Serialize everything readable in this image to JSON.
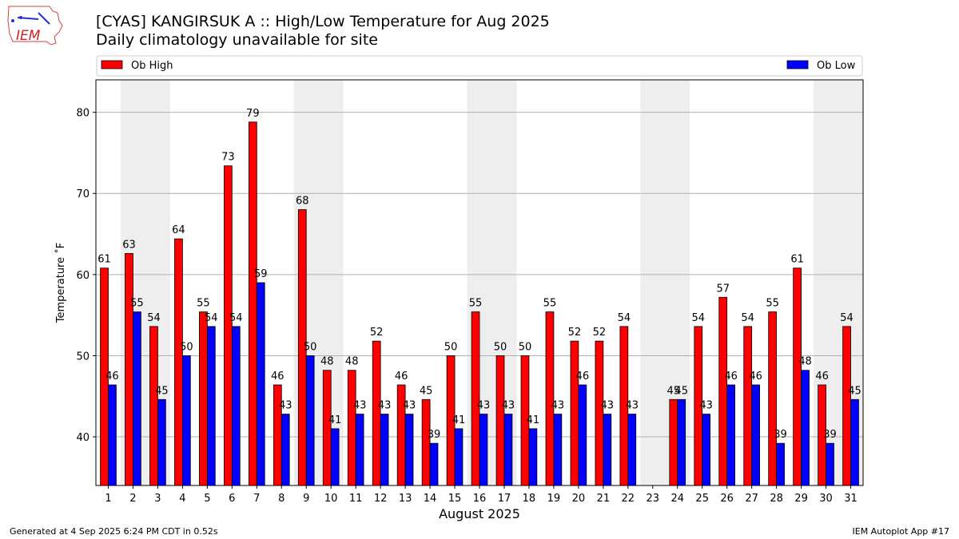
{
  "title_line1": "[CYAS] KANGIRSUK A :: High/Low Temperature for Aug 2025",
  "title_line2": "Daily climatology unavailable for site",
  "logo_text": "IEM",
  "footer_left": "Generated at 4 Sep 2025 6:24 PM CDT in 0.52s",
  "footer_right": "IEM Autoplot App #17",
  "colors": {
    "high": "#ff0000",
    "low": "#0000ff",
    "weekend_band": "#eeeeee"
  },
  "chart_data": {
    "type": "bar",
    "xlabel": "August 2025",
    "ylabel": "Temperature ˚F",
    "ylim": [
      34,
      84
    ],
    "yticks": [
      40,
      50,
      60,
      70,
      80
    ],
    "grid": true,
    "legend_placement": "top",
    "weekend_bands": [
      [
        2,
        3
      ],
      [
        9,
        10
      ],
      [
        16,
        17
      ],
      [
        23,
        24
      ],
      [
        30,
        31
      ]
    ],
    "categories": [
      "1",
      "2",
      "3",
      "4",
      "5",
      "6",
      "7",
      "8",
      "9",
      "10",
      "11",
      "12",
      "13",
      "14",
      "15",
      "16",
      "17",
      "18",
      "19",
      "20",
      "21",
      "22",
      "23",
      "24",
      "25",
      "26",
      "27",
      "28",
      "29",
      "30",
      "31"
    ],
    "series": [
      {
        "name": "Ob High",
        "values": [
          60.8,
          62.6,
          53.6,
          64.4,
          55.4,
          73.4,
          78.8,
          46.4,
          68.0,
          48.2,
          48.2,
          51.8,
          46.4,
          44.6,
          50.0,
          55.4,
          50.0,
          50.0,
          55.4,
          51.8,
          51.8,
          53.6,
          null,
          44.6,
          53.6,
          57.2,
          53.6,
          55.4,
          60.8,
          46.4,
          53.6
        ],
        "labels": [
          "61",
          "63",
          "54",
          "64",
          "55",
          "73",
          "79",
          "46",
          "68",
          "48",
          "48",
          "52",
          "46",
          "45",
          "50",
          "55",
          "50",
          "50",
          "55",
          "52",
          "52",
          "54",
          "",
          "45",
          "54",
          "57",
          "54",
          "55",
          "61",
          "46",
          "54"
        ]
      },
      {
        "name": "Ob Low",
        "values": [
          46.4,
          55.4,
          44.6,
          50.0,
          53.6,
          53.6,
          59.0,
          42.8,
          50.0,
          41.0,
          42.8,
          42.8,
          42.8,
          39.2,
          41.0,
          42.8,
          42.8,
          41.0,
          42.8,
          46.4,
          42.8,
          42.8,
          null,
          44.6,
          42.8,
          46.4,
          46.4,
          39.2,
          48.2,
          39.2,
          44.6
        ],
        "labels": [
          "46",
          "55",
          "45",
          "50",
          "54",
          "54",
          "59",
          "43",
          "50",
          "41",
          "43",
          "43",
          "43",
          "39",
          "41",
          "43",
          "43",
          "41",
          "43",
          "46",
          "43",
          "43",
          "",
          "45",
          "43",
          "46",
          "46",
          "39",
          "48",
          "39",
          "45"
        ]
      }
    ]
  }
}
